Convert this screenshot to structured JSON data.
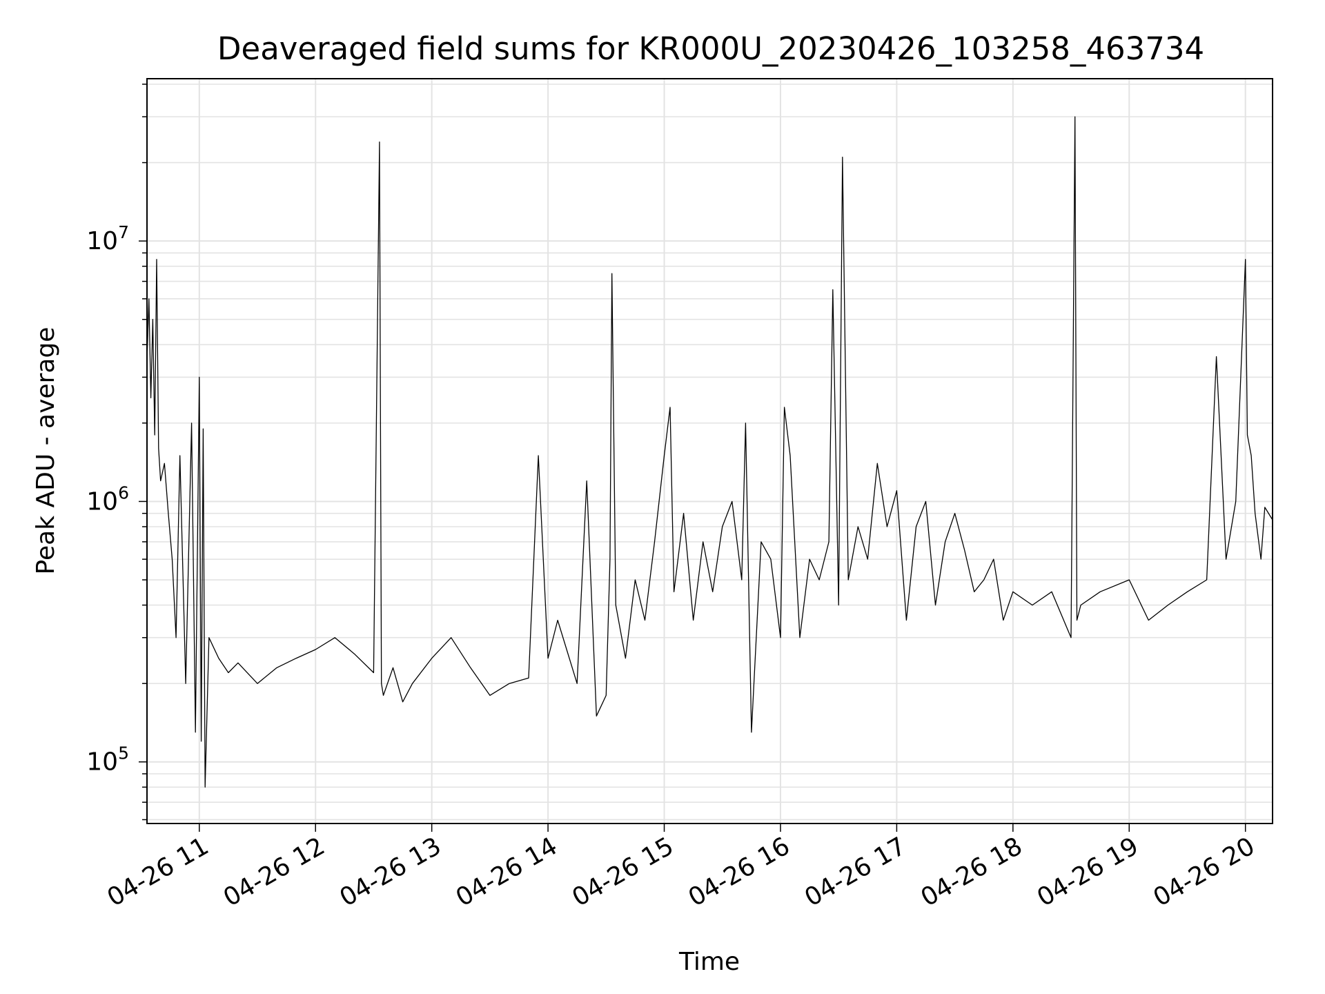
{
  "chart_data": {
    "type": "line",
    "title": "Deaveraged field sums for KR000U_20230426_103258_463734",
    "xlabel": "Time",
    "ylabel": "Peak ADU - average",
    "yscale": "log",
    "ylim": [
      58000,
      42000000
    ],
    "xlim": [
      "2023-04-26 10:33",
      "2023-04-26 20:14"
    ],
    "x_ticks": [
      {
        "time": "2023-04-26 11:00",
        "label": "04-26 11"
      },
      {
        "time": "2023-04-26 12:00",
        "label": "04-26 12"
      },
      {
        "time": "2023-04-26 13:00",
        "label": "04-26 13"
      },
      {
        "time": "2023-04-26 14:00",
        "label": "04-26 14"
      },
      {
        "time": "2023-04-26 15:00",
        "label": "04-26 15"
      },
      {
        "time": "2023-04-26 16:00",
        "label": "04-26 16"
      },
      {
        "time": "2023-04-26 17:00",
        "label": "04-26 17"
      },
      {
        "time": "2023-04-26 18:00",
        "label": "04-26 18"
      },
      {
        "time": "2023-04-26 19:00",
        "label": "04-26 19"
      },
      {
        "time": "2023-04-26 20:00",
        "label": "04-26 20"
      }
    ],
    "y_ticks": [
      {
        "value": 100000,
        "base": "10",
        "exponent": "5"
      },
      {
        "value": 1000000,
        "base": "10",
        "exponent": "6"
      },
      {
        "value": 10000000,
        "base": "10",
        "exponent": "7"
      }
    ],
    "grid": true,
    "line_color": "#000000",
    "series": [
      {
        "name": "",
        "x": [
          "2023-04-26 10:33",
          "2023-04-26 10:34",
          "2023-04-26 10:35",
          "2023-04-26 10:36",
          "2023-04-26 10:37",
          "2023-04-26 10:38",
          "2023-04-26 10:39",
          "2023-04-26 10:40",
          "2023-04-26 10:42",
          "2023-04-26 10:44",
          "2023-04-26 10:46",
          "2023-04-26 10:48",
          "2023-04-26 10:50",
          "2023-04-26 10:53",
          "2023-04-26 10:56",
          "2023-04-26 10:58",
          "2023-04-26 11:00",
          "2023-04-26 11:01",
          "2023-04-26 11:02",
          "2023-04-26 11:03",
          "2023-04-26 11:05",
          "2023-04-26 11:10",
          "2023-04-26 11:15",
          "2023-04-26 11:20",
          "2023-04-26 11:30",
          "2023-04-26 11:40",
          "2023-04-26 11:50",
          "2023-04-26 12:00",
          "2023-04-26 12:10",
          "2023-04-26 12:20",
          "2023-04-26 12:30",
          "2023-04-26 12:33",
          "2023-04-26 12:34",
          "2023-04-26 12:35",
          "2023-04-26 12:40",
          "2023-04-26 12:45",
          "2023-04-26 12:50",
          "2023-04-26 13:00",
          "2023-04-26 13:10",
          "2023-04-26 13:20",
          "2023-04-26 13:30",
          "2023-04-26 13:40",
          "2023-04-26 13:50",
          "2023-04-26 13:55",
          "2023-04-26 14:00",
          "2023-04-26 14:05",
          "2023-04-26 14:15",
          "2023-04-26 14:20",
          "2023-04-26 14:25",
          "2023-04-26 14:30",
          "2023-04-26 14:32",
          "2023-04-26 14:33",
          "2023-04-26 14:35",
          "2023-04-26 14:40",
          "2023-04-26 14:45",
          "2023-04-26 14:50",
          "2023-04-26 14:55",
          "2023-04-26 15:00",
          "2023-04-26 15:03",
          "2023-04-26 15:05",
          "2023-04-26 15:10",
          "2023-04-26 15:15",
          "2023-04-26 15:20",
          "2023-04-26 15:25",
          "2023-04-26 15:30",
          "2023-04-26 15:35",
          "2023-04-26 15:40",
          "2023-04-26 15:42",
          "2023-04-26 15:45",
          "2023-04-26 15:50",
          "2023-04-26 15:55",
          "2023-04-26 16:00",
          "2023-04-26 16:02",
          "2023-04-26 16:05",
          "2023-04-26 16:10",
          "2023-04-26 16:15",
          "2023-04-26 16:20",
          "2023-04-26 16:25",
          "2023-04-26 16:27",
          "2023-04-26 16:30",
          "2023-04-26 16:32",
          "2023-04-26 16:35",
          "2023-04-26 16:40",
          "2023-04-26 16:45",
          "2023-04-26 16:50",
          "2023-04-26 16:55",
          "2023-04-26 17:00",
          "2023-04-26 17:05",
          "2023-04-26 17:10",
          "2023-04-26 17:15",
          "2023-04-26 17:20",
          "2023-04-26 17:25",
          "2023-04-26 17:30",
          "2023-04-26 17:35",
          "2023-04-26 17:40",
          "2023-04-26 17:45",
          "2023-04-26 17:50",
          "2023-04-26 17:55",
          "2023-04-26 18:00",
          "2023-04-26 18:10",
          "2023-04-26 18:20",
          "2023-04-26 18:30",
          "2023-04-26 18:32",
          "2023-04-26 18:33",
          "2023-04-26 18:35",
          "2023-04-26 18:45",
          "2023-04-26 19:00",
          "2023-04-26 19:10",
          "2023-04-26 19:20",
          "2023-04-26 19:30",
          "2023-04-26 19:40",
          "2023-04-26 19:45",
          "2023-04-26 19:50",
          "2023-04-26 19:55",
          "2023-04-26 20:00",
          "2023-04-26 20:01",
          "2023-04-26 20:03",
          "2023-04-26 20:05",
          "2023-04-26 20:08",
          "2023-04-26 20:10",
          "2023-04-26 20:14"
        ],
        "y": [
          3500000,
          6000000,
          2500000,
          5000000,
          1800000,
          8500000,
          1600000,
          1200000,
          1400000,
          900000,
          600000,
          300000,
          1500000,
          200000,
          2000000,
          130000,
          3000000,
          120000,
          1900000,
          80000,
          300000,
          250000,
          220000,
          240000,
          200000,
          230000,
          250000,
          270000,
          300000,
          260000,
          220000,
          24000000,
          200000,
          180000,
          230000,
          170000,
          200000,
          250000,
          300000,
          230000,
          180000,
          200000,
          210000,
          1500000,
          250000,
          350000,
          200000,
          1200000,
          150000,
          180000,
          600000,
          7500000,
          400000,
          250000,
          500000,
          350000,
          700000,
          1500000,
          2300000,
          450000,
          900000,
          350000,
          700000,
          450000,
          800000,
          1000000,
          500000,
          2000000,
          130000,
          700000,
          600000,
          300000,
          2300000,
          1500000,
          300000,
          600000,
          500000,
          700000,
          6500000,
          400000,
          21000000,
          500000,
          800000,
          600000,
          1400000,
          800000,
          1100000,
          350000,
          800000,
          1000000,
          400000,
          700000,
          900000,
          650000,
          450000,
          500000,
          600000,
          350000,
          450000,
          400000,
          450000,
          300000,
          30000000,
          350000,
          400000,
          450000,
          500000,
          350000,
          400000,
          450000,
          500000,
          3600000,
          600000,
          1000000,
          8500000,
          1800000,
          1500000,
          900000,
          600000,
          950000,
          850000
        ]
      }
    ]
  }
}
